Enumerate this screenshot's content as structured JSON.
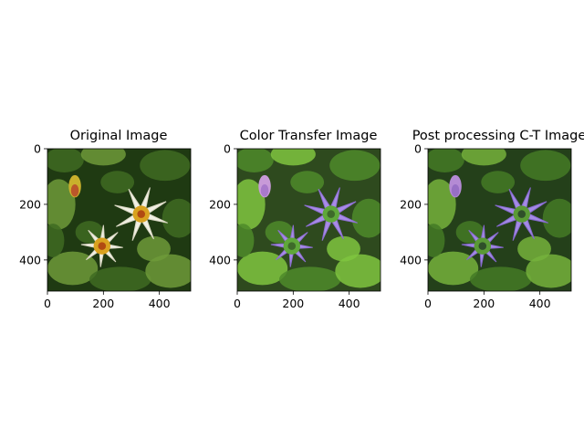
{
  "chart_data": [
    {
      "type": "image",
      "title": "Original Image",
      "xticks": [
        0,
        200,
        400
      ],
      "yticks": [
        0,
        200,
        400
      ],
      "xlim": [
        0,
        512
      ],
      "ylim": [
        512,
        0
      ],
      "colors": {
        "background": "#1f3a12",
        "leaf": "#3f6b22",
        "leaf_light": "#6f9a3a",
        "petal": "#f1f0e4",
        "petal_shade": "#d8d6c2",
        "center": "#d9a21f",
        "center_dark": "#b14a12",
        "bud": "#c9b02c",
        "bud_red": "#b8402a"
      }
    },
    {
      "type": "image",
      "title": "Color Transfer Image",
      "xticks": [
        0,
        200,
        400
      ],
      "yticks": [
        0,
        200,
        400
      ],
      "xlim": [
        0,
        512
      ],
      "ylim": [
        512,
        0
      ],
      "colors": {
        "background": "#2e4a1e",
        "leaf": "#4d8a2a",
        "leaf_light": "#7fc440",
        "petal": "#a98be8",
        "petal_shade": "#8c6fd0",
        "center": "#5fa83a",
        "center_dark": "#3e6a2a",
        "bud": "#c89ad8",
        "bud_red": "#a070c8"
      }
    },
    {
      "type": "image",
      "title": "Post processing C-T Image",
      "xticks": [
        0,
        200,
        400
      ],
      "yticks": [
        0,
        200,
        400
      ],
      "xlim": [
        0,
        512
      ],
      "ylim": [
        512,
        0
      ],
      "colors": {
        "background": "#24401a",
        "leaf": "#447a26",
        "leaf_light": "#76b23c",
        "petal": "#a48ae6",
        "petal_shade": "#8468cc",
        "center": "#5a9a36",
        "center_dark": "#2f4f2a",
        "bud": "#b48ad4",
        "bud_red": "#9068c0"
      }
    }
  ]
}
